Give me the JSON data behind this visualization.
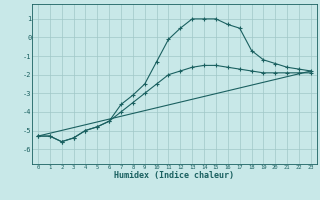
{
  "title": "",
  "xlabel": "Humidex (Indice chaleur)",
  "background_color": "#c8e8e8",
  "grid_color": "#a0c8c8",
  "line_color": "#1a6060",
  "xlim": [
    -0.5,
    23.5
  ],
  "ylim": [
    -6.8,
    1.8
  ],
  "yticks": [
    1,
    0,
    -1,
    -2,
    -3,
    -4,
    -5,
    -6
  ],
  "xticks": [
    0,
    1,
    2,
    3,
    4,
    5,
    6,
    7,
    8,
    9,
    10,
    11,
    12,
    13,
    14,
    15,
    16,
    17,
    18,
    19,
    20,
    21,
    22,
    23
  ],
  "series1_x": [
    0,
    1,
    2,
    3,
    4,
    5,
    6,
    7,
    8,
    9,
    10,
    11,
    12,
    13,
    14,
    15,
    16,
    17,
    18,
    19,
    20,
    21,
    22,
    23
  ],
  "series1_y": [
    -5.3,
    -5.3,
    -5.6,
    -5.4,
    -5.0,
    -4.8,
    -4.5,
    -3.6,
    -3.1,
    -2.5,
    -1.3,
    -0.1,
    0.5,
    1.0,
    1.0,
    1.0,
    0.7,
    0.5,
    -0.7,
    -1.2,
    -1.4,
    -1.6,
    -1.7,
    -1.8
  ],
  "series2_x": [
    0,
    1,
    2,
    3,
    4,
    5,
    6,
    7,
    8,
    9,
    10,
    11,
    12,
    13,
    14,
    15,
    16,
    17,
    18,
    19,
    20,
    21,
    22,
    23
  ],
  "series2_y": [
    -5.3,
    -5.3,
    -5.6,
    -5.4,
    -5.0,
    -4.8,
    -4.5,
    -4.0,
    -3.5,
    -3.0,
    -2.5,
    -2.0,
    -1.8,
    -1.6,
    -1.5,
    -1.5,
    -1.6,
    -1.7,
    -1.8,
    -1.9,
    -1.9,
    -1.9,
    -1.9,
    -1.9
  ],
  "series3_x": [
    0,
    23
  ],
  "series3_y": [
    -5.3,
    -1.8
  ]
}
